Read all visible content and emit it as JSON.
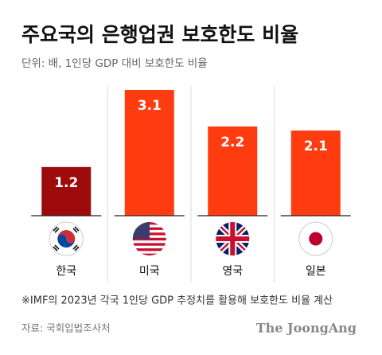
{
  "chart_data": {
    "type": "bar",
    "title": "주요국의 은행업권 보호한도 비율",
    "subtitle": "단위: 배, 1인당 GDP 대비 보호한도 비율",
    "categories": [
      "한국",
      "미국",
      "영국",
      "일본"
    ],
    "values": [
      1.2,
      3.1,
      2.2,
      2.1
    ],
    "colors": [
      "#9e0b0b",
      "#ff3c10",
      "#ff3c10",
      "#ff3c10"
    ],
    "note": "※IMF의 2023년 각국 1인당 GDP 추정치를 활용해 보호한도 비율 계산",
    "source": "자료: 국회입법조사처",
    "brand": "The JoongAng"
  }
}
